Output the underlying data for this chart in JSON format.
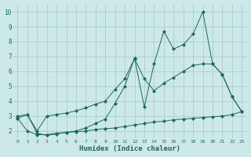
{
  "xlabel": "Humidex (Indice chaleur)",
  "bg_color": "#cce8e8",
  "grid_color": "#aacccc",
  "line_color": "#1a6a5a",
  "xlim": [
    -0.5,
    23.5
  ],
  "ylim": [
    1.5,
    10.5
  ],
  "yticks": [
    2,
    3,
    4,
    5,
    6,
    7,
    8,
    9,
    10
  ],
  "xticks": [
    0,
    1,
    2,
    3,
    4,
    5,
    6,
    7,
    8,
    9,
    10,
    11,
    12,
    13,
    14,
    15,
    16,
    17,
    18,
    19,
    20,
    21,
    22,
    23
  ],
  "line1_x": [
    0,
    1,
    2,
    3,
    4,
    5,
    6,
    7,
    8,
    9,
    10,
    11,
    12,
    13,
    14,
    15,
    16,
    17,
    18,
    19,
    20,
    21,
    22,
    23
  ],
  "line1_y": [
    2.85,
    2.0,
    1.75,
    1.75,
    1.85,
    1.9,
    1.95,
    2.0,
    2.1,
    2.15,
    2.2,
    2.3,
    2.4,
    2.5,
    2.6,
    2.65,
    2.75,
    2.8,
    2.85,
    2.9,
    2.95,
    3.0,
    3.1,
    3.3
  ],
  "line2_x": [
    0,
    1,
    2,
    3,
    4,
    5,
    6,
    7,
    8,
    9,
    10,
    11,
    12,
    13,
    14,
    15,
    16,
    17,
    18,
    19,
    20,
    21,
    22,
    23
  ],
  "line2_y": [
    3.0,
    3.1,
    1.85,
    1.7,
    1.8,
    1.9,
    2.0,
    2.2,
    2.5,
    2.8,
    3.85,
    5.0,
    6.9,
    3.6,
    6.5,
    8.7,
    7.5,
    7.8,
    8.5,
    10.0,
    6.5,
    5.8,
    4.3,
    3.3
  ],
  "line3_x": [
    0,
    1,
    2,
    3,
    4,
    5,
    6,
    7,
    8,
    9,
    10,
    11,
    12,
    13,
    14,
    15,
    16,
    17,
    18,
    19,
    20,
    21,
    22,
    23
  ],
  "line3_y": [
    2.85,
    3.1,
    2.0,
    3.0,
    3.1,
    3.2,
    3.35,
    3.55,
    3.8,
    4.0,
    4.8,
    5.5,
    6.85,
    5.5,
    4.7,
    5.2,
    5.6,
    6.0,
    6.4,
    6.5,
    6.5,
    5.8,
    4.3,
    3.3
  ]
}
